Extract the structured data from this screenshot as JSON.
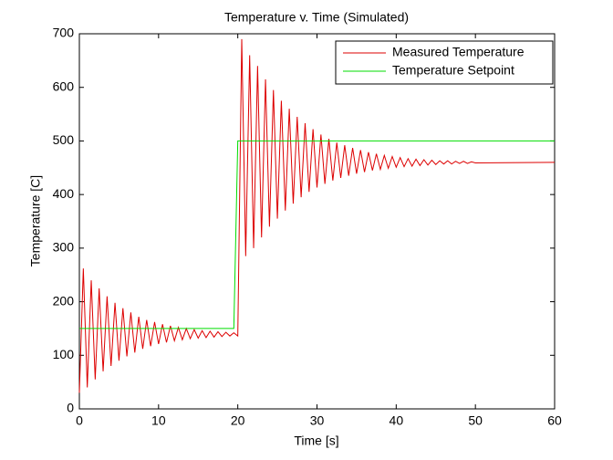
{
  "chart_data": {
    "type": "line",
    "title": "Temperature v. Time (Simulated)",
    "x_label": "Time [s]",
    "y_label": "Temperature [C]",
    "xlim": [
      0,
      60
    ],
    "xticks": [
      0,
      10,
      20,
      30,
      40,
      50,
      60
    ],
    "ylim": [
      0,
      700
    ],
    "yticks": [
      0,
      100,
      200,
      300,
      400,
      500,
      600,
      700
    ],
    "grid": false,
    "legend": "northeast",
    "series": [
      {
        "name": "Measured Temperature",
        "color": "#dd0000",
        "x": [
          0,
          0.5,
          1,
          1.5,
          2,
          2.5,
          3,
          3.5,
          4,
          4.5,
          5,
          5.5,
          6,
          6.5,
          7,
          7.5,
          8,
          8.5,
          9,
          9.5,
          10,
          10.5,
          11,
          11.5,
          12,
          12.5,
          13,
          13.5,
          14,
          14.5,
          15,
          15.5,
          16,
          16.5,
          17,
          17.5,
          18,
          18.5,
          19,
          19.5,
          20,
          20.5,
          21,
          21.5,
          22,
          22.5,
          23,
          23.5,
          24,
          24.5,
          25,
          25.5,
          26,
          26.5,
          27,
          27.5,
          28,
          28.5,
          29,
          29.5,
          30,
          30.5,
          31,
          31.5,
          32,
          32.5,
          33,
          33.5,
          34,
          34.5,
          35,
          35.5,
          36,
          36.5,
          37,
          37.5,
          38,
          38.5,
          39,
          39.5,
          40,
          40.5,
          41,
          41.5,
          42,
          42.5,
          43,
          43.5,
          44,
          44.5,
          45,
          45.5,
          46,
          46.5,
          47,
          47.5,
          48,
          48.5,
          49,
          49.5,
          50,
          60
        ],
        "values": [
          30,
          262,
          40,
          240,
          55,
          225,
          70,
          210,
          80,
          198,
          90,
          188,
          98,
          180,
          105,
          172,
          112,
          166,
          117,
          162,
          121,
          158,
          124,
          155,
          127,
          152,
          129,
          150,
          131,
          148,
          132,
          146,
          133,
          145,
          134,
          144,
          135,
          143,
          136,
          142,
          136,
          690,
          285,
          660,
          300,
          640,
          320,
          615,
          340,
          595,
          355,
          575,
          370,
          560,
          383,
          545,
          395,
          533,
          405,
          522,
          413,
          512,
          420,
          504,
          426,
          497,
          431,
          492,
          435,
          487,
          439,
          483,
          442,
          479,
          445,
          476,
          447,
          473,
          449,
          471,
          451,
          469,
          452,
          467,
          453,
          466,
          454,
          465,
          455,
          464,
          456,
          463,
          457,
          463,
          457,
          462,
          458,
          462,
          458,
          461,
          459,
          460
        ]
      },
      {
        "name": "Temperature Setpoint",
        "color": "#00dd00",
        "x": [
          0,
          19.5,
          20,
          60
        ],
        "values": [
          150,
          150,
          500,
          500
        ]
      }
    ]
  }
}
